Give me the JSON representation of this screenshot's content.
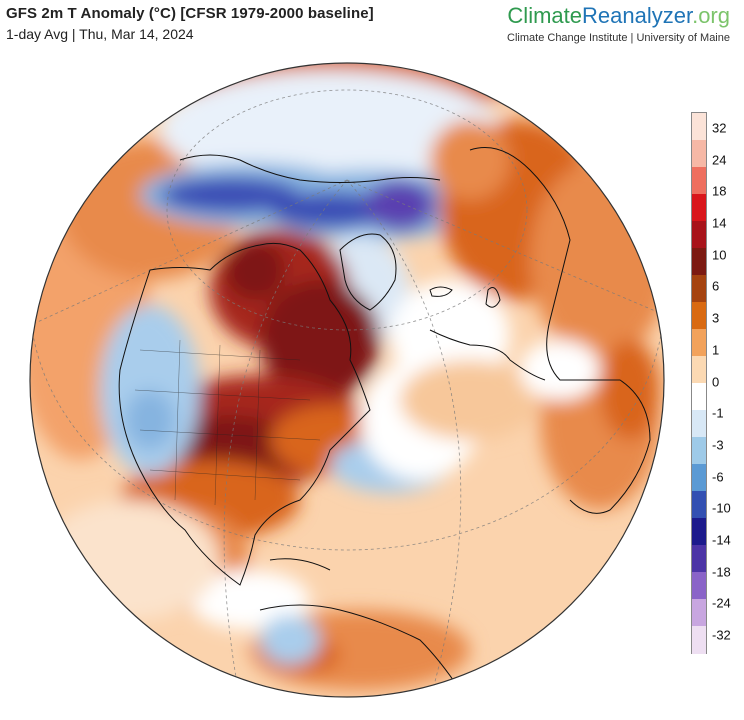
{
  "header": {
    "title": "GFS 2m T Anomaly (°C) [CFSR 1979-2000 baseline]",
    "subtitle": "1-day Avg | Thu, Mar 14, 2024"
  },
  "brand": {
    "part1": "Climate",
    "part2": "Reanalyzer",
    "part3": ".org",
    "subline": "Climate Change Institute | University of Maine"
  },
  "legend": {
    "labels": [
      "32",
      "24",
      "18",
      "14",
      "10",
      "6",
      "3",
      "1",
      "0",
      "-1",
      "-3",
      "-6",
      "-10",
      "-14",
      "-18",
      "-24",
      "-32"
    ],
    "colors": [
      "#fbe3d8",
      "#f6b8a6",
      "#ee6f5f",
      "#d9161b",
      "#a8131a",
      "#7c1a12",
      "#a54310",
      "#d96a12",
      "#f2a25b",
      "#fbd9b3",
      "#ffffff",
      "#d8e8f6",
      "#9ecae8",
      "#5b9ad4",
      "#3350b2",
      "#1c1a8c",
      "#4c34a6",
      "#8a63c8",
      "#c8a6e0",
      "#eedff2"
    ]
  },
  "map": {
    "projection": "orthographic",
    "colors": {
      "ocean_warm": "#fbd3ad",
      "warm": "#f3a26a",
      "hot": "#d9651b",
      "very_hot": "#a6281a",
      "extreme": "#7e1812",
      "cool": "#cfe2f3",
      "cold": "#86b4e0",
      "very_cold": "#3a4db5",
      "extreme_cold": "#5a3fb0"
    }
  }
}
